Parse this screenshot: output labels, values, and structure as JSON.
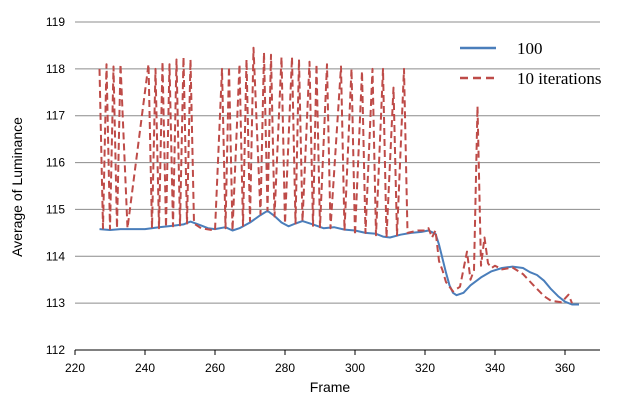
{
  "chart_data": {
    "type": "line",
    "title": "",
    "xlabel": "Frame",
    "ylabel": "Average of Luminance",
    "xlim": [
      220,
      370
    ],
    "ylim": [
      112,
      119
    ],
    "x_ticks": [
      220,
      240,
      260,
      280,
      300,
      320,
      340,
      360
    ],
    "y_ticks": [
      112,
      113,
      114,
      115,
      116,
      117,
      118,
      119
    ],
    "grid": {
      "horizontal": true,
      "vertical": false
    },
    "legend_position": "top-right",
    "series": [
      {
        "name": "100",
        "color": "#4a7ebb",
        "style": "solid",
        "points": [
          [
            227,
            114.58
          ],
          [
            230,
            114.56
          ],
          [
            233,
            114.58
          ],
          [
            236,
            114.58
          ],
          [
            240,
            114.58
          ],
          [
            244,
            114.62
          ],
          [
            248,
            114.65
          ],
          [
            251,
            114.68
          ],
          [
            253,
            114.74
          ],
          [
            256,
            114.66
          ],
          [
            258,
            114.6
          ],
          [
            260,
            114.58
          ],
          [
            263,
            114.62
          ],
          [
            265,
            114.55
          ],
          [
            267,
            114.6
          ],
          [
            270,
            114.72
          ],
          [
            273,
            114.88
          ],
          [
            275,
            114.97
          ],
          [
            277,
            114.86
          ],
          [
            279,
            114.72
          ],
          [
            281,
            114.64
          ],
          [
            283,
            114.7
          ],
          [
            285,
            114.75
          ],
          [
            288,
            114.68
          ],
          [
            291,
            114.6
          ],
          [
            294,
            114.62
          ],
          [
            297,
            114.57
          ],
          [
            300,
            114.55
          ],
          [
            303,
            114.5
          ],
          [
            306,
            114.48
          ],
          [
            308,
            114.42
          ],
          [
            310,
            114.4
          ],
          [
            313,
            114.46
          ],
          [
            316,
            114.5
          ],
          [
            319,
            114.52
          ],
          [
            321,
            114.55
          ],
          [
            323,
            114.48
          ],
          [
            324,
            114.25
          ],
          [
            325,
            113.95
          ],
          [
            326,
            113.65
          ],
          [
            327,
            113.38
          ],
          [
            328,
            113.22
          ],
          [
            329,
            113.17
          ],
          [
            331,
            113.22
          ],
          [
            333,
            113.38
          ],
          [
            336,
            113.55
          ],
          [
            339,
            113.68
          ],
          [
            342,
            113.75
          ],
          [
            345,
            113.78
          ],
          [
            348,
            113.75
          ],
          [
            350,
            113.66
          ],
          [
            352,
            113.6
          ],
          [
            354,
            113.48
          ],
          [
            356,
            113.3
          ],
          [
            358,
            113.15
          ],
          [
            360,
            113.03
          ],
          [
            362,
            112.97
          ],
          [
            364,
            112.97
          ]
        ]
      },
      {
        "name": "10 iterations",
        "color": "#be4b48",
        "style": "dashed",
        "points": [
          [
            227,
            118.0
          ],
          [
            228,
            114.6
          ],
          [
            229,
            118.1
          ],
          [
            230,
            114.58
          ],
          [
            231,
            118.05
          ],
          [
            232,
            114.6
          ],
          [
            233,
            118.1
          ],
          [
            235,
            114.6
          ],
          [
            241,
            118.1
          ],
          [
            242,
            114.6
          ],
          [
            243,
            118.0
          ],
          [
            244,
            114.6
          ],
          [
            245,
            118.15
          ],
          [
            246,
            114.62
          ],
          [
            247,
            118.1
          ],
          [
            248,
            114.64
          ],
          [
            249,
            118.2
          ],
          [
            250,
            114.66
          ],
          [
            251,
            118.25
          ],
          [
            252,
            114.7
          ],
          [
            253,
            118.2
          ],
          [
            254,
            114.7
          ],
          [
            256,
            114.6
          ],
          [
            260,
            114.55
          ],
          [
            262,
            118.0
          ],
          [
            263,
            114.6
          ],
          [
            264,
            118.05
          ],
          [
            265,
            114.55
          ],
          [
            267,
            118.1
          ],
          [
            268,
            114.65
          ],
          [
            269,
            118.2
          ],
          [
            270,
            114.75
          ],
          [
            271,
            118.45
          ],
          [
            273,
            114.9
          ],
          [
            274,
            118.35
          ],
          [
            275,
            114.98
          ],
          [
            276,
            118.3
          ],
          [
            277,
            114.85
          ],
          [
            279,
            118.25
          ],
          [
            280,
            114.7
          ],
          [
            282,
            118.25
          ],
          [
            283,
            114.7
          ],
          [
            284,
            118.2
          ],
          [
            285,
            114.75
          ],
          [
            287,
            118.15
          ],
          [
            288,
            114.65
          ],
          [
            289,
            118.1
          ],
          [
            290,
            114.62
          ],
          [
            292,
            118.1
          ],
          [
            293,
            114.6
          ],
          [
            296,
            118.05
          ],
          [
            297,
            114.55
          ],
          [
            299,
            118.0
          ],
          [
            300,
            114.45
          ],
          [
            302,
            117.95
          ],
          [
            303,
            114.5
          ],
          [
            305,
            118.0
          ],
          [
            306,
            114.45
          ],
          [
            308,
            118.0
          ],
          [
            309,
            114.4
          ],
          [
            311,
            117.6
          ],
          [
            312,
            114.45
          ],
          [
            314,
            118.0
          ],
          [
            315,
            114.5
          ],
          [
            318,
            114.55
          ],
          [
            320,
            114.55
          ],
          [
            321,
            114.6
          ],
          [
            322,
            114.4
          ],
          [
            323,
            114.55
          ],
          [
            324,
            113.9
          ],
          [
            325,
            113.7
          ],
          [
            326,
            113.45
          ],
          [
            328,
            113.25
          ],
          [
            330,
            113.35
          ],
          [
            332,
            114.1
          ],
          [
            333,
            113.5
          ],
          [
            334,
            113.7
          ],
          [
            335,
            117.2
          ],
          [
            336,
            113.8
          ],
          [
            337,
            114.4
          ],
          [
            338,
            113.85
          ],
          [
            339,
            113.75
          ],
          [
            340,
            113.8
          ],
          [
            342,
            113.72
          ],
          [
            345,
            113.76
          ],
          [
            348,
            113.62
          ],
          [
            351,
            113.38
          ],
          [
            354,
            113.15
          ],
          [
            356,
            113.05
          ],
          [
            359,
            113.02
          ],
          [
            361,
            113.18
          ],
          [
            362,
            113.0
          ]
        ]
      }
    ]
  }
}
